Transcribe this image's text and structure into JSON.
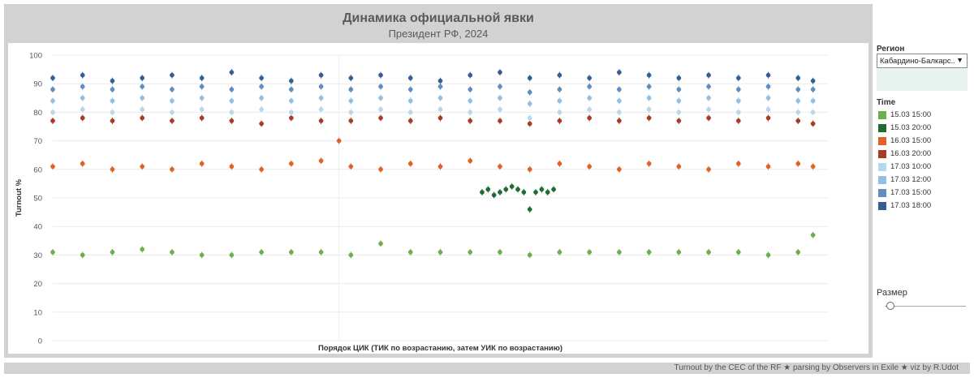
{
  "dashboard": {
    "title": "Динамика официальной явки",
    "subtitle": "Президент РФ, 2024",
    "footer": "Turnout by the CEC of the RF ★ parsing by Observers in Exile ★ viz by R.Udot"
  },
  "filters": {
    "region_label": "Регион",
    "region_value": "Кабардино-Балкарс...",
    "size_label": "Размер",
    "size_value": 0.05
  },
  "legend": {
    "title": "Time",
    "items": [
      {
        "label": "15.03 15:00",
        "color": "#6ab04c"
      },
      {
        "label": "15.03 20:00",
        "color": "#1e6b34"
      },
      {
        "label": "16.03 15:00",
        "color": "#e0622a"
      },
      {
        "label": "16.03 20:00",
        "color": "#a83b24"
      },
      {
        "label": "17.03 10:00",
        "color": "#b7d7ec"
      },
      {
        "label": "17.03 12:00",
        "color": "#93bfe0"
      },
      {
        "label": "17.03 15:00",
        "color": "#5f8fc0"
      },
      {
        "label": "17.03 18:00",
        "color": "#355f92"
      }
    ]
  },
  "chart_data": {
    "type": "scatter",
    "title": "Динамика официальной явки",
    "subtitle": "Президент РФ, 2024",
    "xlabel": "Порядок ЦИК (ТИК по возрастанию, затем УИК по возрастанию)",
    "ylabel": "Turnout %",
    "ylim": [
      0,
      100
    ],
    "yticks": [
      0,
      10,
      20,
      30,
      40,
      50,
      60,
      70,
      80,
      90,
      100
    ],
    "xlim": [
      0,
      260
    ],
    "legend_position": "right",
    "grid": true,
    "series": [
      {
        "name": "15.03 15:00",
        "color": "#6ab04c",
        "x": [
          0,
          10,
          20,
          30,
          40,
          50,
          60,
          70,
          80,
          90,
          100,
          110,
          120,
          130,
          140,
          150,
          160,
          170,
          180,
          190,
          200,
          210,
          220,
          230,
          240,
          250,
          255
        ],
        "y": [
          31,
          30,
          31,
          32,
          31,
          30,
          30,
          31,
          31,
          31,
          30,
          34,
          31,
          31,
          31,
          31,
          30,
          31,
          31,
          31,
          31,
          31,
          31,
          31,
          30,
          31,
          37
        ]
      },
      {
        "name": "15.03 20:00",
        "color": "#1e6b34",
        "x": [
          144,
          146,
          148,
          150,
          152,
          154,
          156,
          158,
          160,
          162,
          164,
          166,
          168
        ],
        "y": [
          52,
          53,
          51,
          52,
          53,
          54,
          53,
          52,
          46,
          52,
          53,
          52,
          53
        ]
      },
      {
        "name": "16.03 15:00",
        "color": "#e0622a",
        "x": [
          0,
          10,
          20,
          30,
          40,
          50,
          60,
          70,
          80,
          90,
          96,
          100,
          110,
          120,
          130,
          140,
          150,
          160,
          170,
          180,
          190,
          200,
          210,
          220,
          230,
          240,
          250,
          255
        ],
        "y": [
          61,
          62,
          60,
          61,
          60,
          62,
          61,
          60,
          62,
          63,
          70,
          61,
          60,
          62,
          61,
          63,
          61,
          60,
          62,
          61,
          60,
          62,
          61,
          60,
          62,
          61,
          62,
          61
        ]
      },
      {
        "name": "16.03 20:00",
        "color": "#a83b24",
        "x": [
          0,
          10,
          20,
          30,
          40,
          50,
          60,
          70,
          80,
          90,
          100,
          110,
          120,
          130,
          140,
          150,
          160,
          170,
          180,
          190,
          200,
          210,
          220,
          230,
          240,
          250,
          255
        ],
        "y": [
          77,
          78,
          77,
          78,
          77,
          78,
          77,
          76,
          78,
          77,
          77,
          78,
          77,
          78,
          77,
          77,
          76,
          77,
          78,
          77,
          78,
          77,
          78,
          77,
          78,
          77,
          76
        ]
      },
      {
        "name": "17.03 10:00",
        "color": "#b7d7ec",
        "x": [
          0,
          10,
          20,
          30,
          40,
          50,
          60,
          70,
          80,
          90,
          100,
          110,
          120,
          130,
          140,
          150,
          160,
          170,
          180,
          190,
          200,
          210,
          220,
          230,
          240,
          250,
          255
        ],
        "y": [
          80,
          81,
          80,
          81,
          80,
          81,
          80,
          81,
          80,
          81,
          80,
          81,
          80,
          81,
          80,
          81,
          78,
          80,
          81,
          80,
          81,
          80,
          81,
          80,
          81,
          80,
          80
        ]
      },
      {
        "name": "17.03 12:00",
        "color": "#93bfe0",
        "x": [
          0,
          10,
          20,
          30,
          40,
          50,
          60,
          70,
          80,
          90,
          100,
          110,
          120,
          130,
          140,
          150,
          160,
          170,
          180,
          190,
          200,
          210,
          220,
          230,
          240,
          250,
          255
        ],
        "y": [
          84,
          85,
          84,
          85,
          84,
          85,
          84,
          85,
          84,
          85,
          84,
          85,
          84,
          85,
          84,
          85,
          83,
          84,
          85,
          84,
          85,
          84,
          85,
          84,
          85,
          84,
          84
        ]
      },
      {
        "name": "17.03 15:00",
        "color": "#5f8fc0",
        "x": [
          0,
          10,
          20,
          30,
          40,
          50,
          60,
          70,
          80,
          90,
          100,
          110,
          120,
          130,
          140,
          150,
          160,
          170,
          180,
          190,
          200,
          210,
          220,
          230,
          240,
          250,
          255
        ],
        "y": [
          88,
          89,
          88,
          89,
          88,
          89,
          88,
          89,
          88,
          89,
          88,
          89,
          88,
          89,
          88,
          89,
          87,
          88,
          89,
          88,
          89,
          88,
          89,
          88,
          89,
          88,
          88
        ]
      },
      {
        "name": "17.03 18:00",
        "color": "#355f92",
        "x": [
          0,
          10,
          20,
          30,
          40,
          50,
          60,
          70,
          80,
          90,
          100,
          110,
          120,
          130,
          140,
          150,
          160,
          170,
          180,
          190,
          200,
          210,
          220,
          230,
          240,
          250,
          255
        ],
        "y": [
          92,
          93,
          91,
          92,
          93,
          92,
          94,
          92,
          91,
          93,
          92,
          93,
          92,
          91,
          93,
          94,
          92,
          93,
          92,
          94,
          93,
          92,
          93,
          92,
          93,
          92,
          91
        ]
      }
    ]
  }
}
